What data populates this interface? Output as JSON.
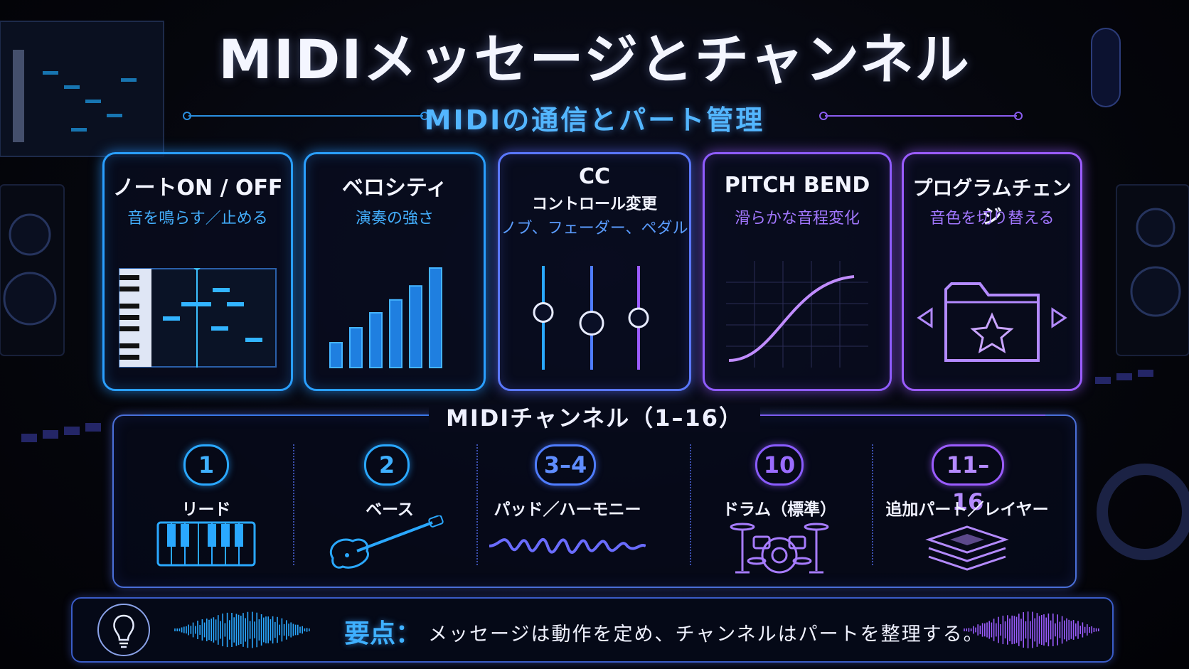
{
  "title": "MIDIメッセージとチャンネル",
  "subtitle": "MIDIの通信とパート管理",
  "messages": [
    {
      "title": "ノートON / OFF",
      "desc": "音を鳴らす／止める",
      "icon": "piano-roll-icon"
    },
    {
      "title": "ベロシティ",
      "desc": "演奏の強さ",
      "icon": "velocity-bars-icon",
      "levels": [
        0.25,
        0.4,
        0.55,
        0.68,
        0.82,
        1.0
      ]
    },
    {
      "title": "CC",
      "title2": "コントロール変更",
      "desc": "ノブ、フェーダー、ペダル",
      "icon": "fader-icon",
      "levels": [
        0.55,
        0.45,
        0.5
      ]
    },
    {
      "title": "PITCH BEND",
      "desc": "滑らかな音程変化",
      "icon": "pitch-curve-icon"
    },
    {
      "title": "プログラムチェンジ",
      "desc": "音色を切り替える",
      "icon": "preset-folder-icon"
    }
  ],
  "channels": {
    "title": "MIDIチャンネル（1–16）",
    "items": [
      {
        "num": "1",
        "label": "リード",
        "icon": "keyboard-icon",
        "color": "#2aa8ff"
      },
      {
        "num": "2",
        "label": "ベース",
        "icon": "bass-guitar-icon",
        "color": "#2aa8ff"
      },
      {
        "num": "3–4",
        "label": "パッド／ハーモニー",
        "icon": "waveform-icon",
        "color": "#4f7dff"
      },
      {
        "num": "10",
        "label": "ドラム（標準）",
        "icon": "drum-kit-icon",
        "color": "#8a5cff"
      },
      {
        "num": "11–16",
        "label": "追加パート／レイヤー",
        "icon": "layers-icon",
        "color": "#9b5cff"
      }
    ]
  },
  "keypoint": {
    "label": "要点：",
    "text": "メッセージは動作を定め、チャンネルはパートを整理する。",
    "icon": "lightbulb-icon"
  },
  "colors": {
    "blue": "#2aa8ff",
    "purple": "#9b5cff"
  }
}
